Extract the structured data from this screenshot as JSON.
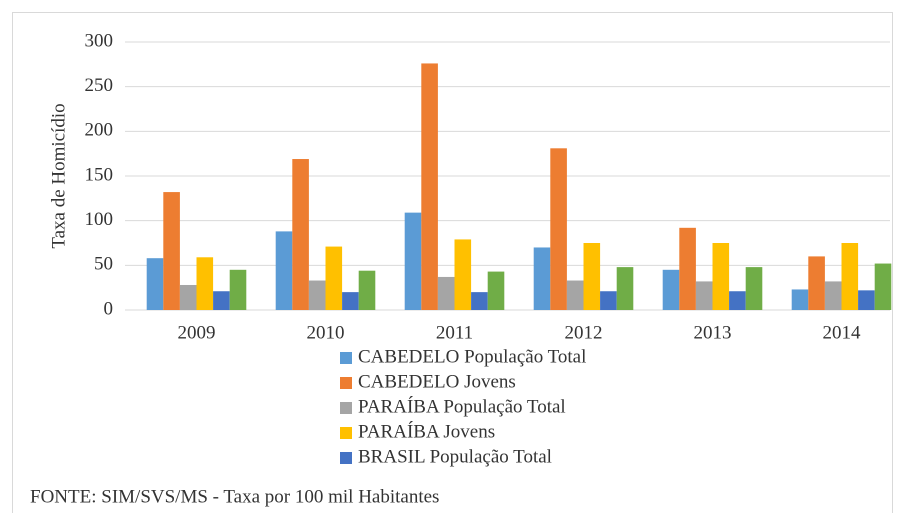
{
  "chart_data": {
    "type": "bar",
    "y_label": "Taxa de Homicídio",
    "source": "FONTE: SIM/SVS/MS - Taxa por 100 mil Habitantes",
    "categories": [
      "2009",
      "2010",
      "2011",
      "2012",
      "2013",
      "2014"
    ],
    "series": [
      {
        "name": "CABEDELO População Total",
        "color": "#5b9bd5",
        "values": [
          58,
          88,
          109,
          70,
          45,
          23
        ]
      },
      {
        "name": "CABEDELO Jovens",
        "color": "#ed7d31",
        "values": [
          132,
          169,
          276,
          181,
          92,
          60
        ]
      },
      {
        "name": "PARAÍBA População Total",
        "color": "#a5a5a5",
        "values": [
          28,
          33,
          37,
          33,
          32,
          32
        ]
      },
      {
        "name": "PARAÍBA Jovens",
        "color": "#ffc000",
        "values": [
          59,
          71,
          79,
          75,
          75,
          75
        ]
      },
      {
        "name": "BRASIL População Total",
        "color": "#4472c4",
        "values": [
          21,
          20,
          20,
          21,
          21,
          22
        ]
      },
      {
        "color": "#70ad47",
        "values": [
          45,
          44,
          43,
          48,
          48,
          52
        ]
      }
    ],
    "ylim": [
      0,
      300
    ],
    "yticks": [
      0,
      50,
      100,
      150,
      200,
      250,
      300
    ],
    "grid": true
  }
}
